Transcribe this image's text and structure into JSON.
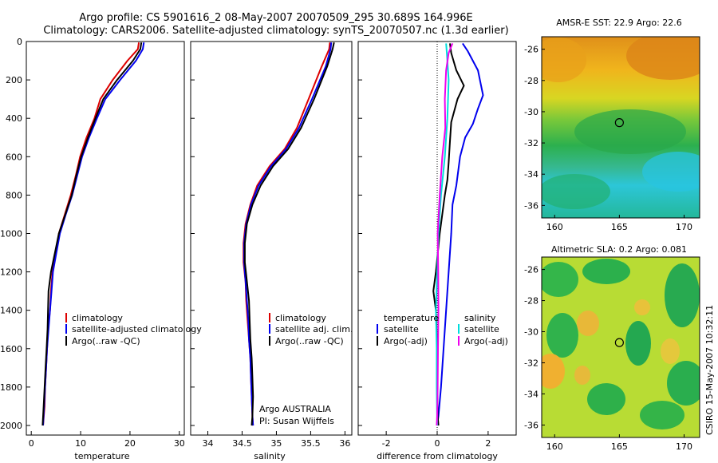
{
  "titles": {
    "line1": "Argo profile: CS 5901616_2 08-May-2007 20070509_295 30.689S 164.996E",
    "line2": "Climatology: CARS2006. Satellite-adjusted climatology: synTS_20070507.nc (1.3d earlier)"
  },
  "side_stamp": "CSIRO 15-May-2007 10:32:11",
  "credits": {
    "line1": "Argo AUSTRALIA",
    "line2": "PI: Susan Wijffels"
  },
  "colors": {
    "red": "#dd0000",
    "blue": "#0000ee",
    "black": "#000000",
    "cyan": "#00dddd",
    "magenta": "#ee00ee"
  },
  "chart_data": [
    {
      "type": "line",
      "xlabel": "temperature",
      "xlim": [
        -1,
        31
      ],
      "xticks": [
        0,
        10,
        20,
        30
      ],
      "ylim": [
        2050,
        0
      ],
      "yticks": [
        0,
        200,
        400,
        600,
        800,
        1000,
        1200,
        1400,
        1600,
        1800,
        2000
      ],
      "legend": [
        "climatology",
        "satellite-adjusted climatology",
        "Argo(..raw -QC)"
      ],
      "series": [
        {
          "name": "climatology",
          "color": "red",
          "points": [
            [
              21.8,
              5
            ],
            [
              21.6,
              40
            ],
            [
              19.5,
              100
            ],
            [
              16.5,
              200
            ],
            [
              14,
              300
            ],
            [
              12.8,
              400
            ],
            [
              11.2,
              500
            ],
            [
              9.9,
              600
            ],
            [
              9,
              700
            ],
            [
              8,
              800
            ],
            [
              6.8,
              900
            ],
            [
              5.6,
              1000
            ],
            [
              5,
              1100
            ],
            [
              4.3,
              1200
            ],
            [
              4,
              1300
            ],
            [
              3.8,
              1400
            ],
            [
              3.4,
              1500
            ],
            [
              3.2,
              1600
            ],
            [
              3,
              1700
            ],
            [
              2.8,
              1800
            ],
            [
              2.7,
              1900
            ],
            [
              2.4,
              2000
            ]
          ]
        },
        {
          "name": "satellite-adjusted climatology",
          "color": "blue",
          "points": [
            [
              22.8,
              5
            ],
            [
              22.6,
              40
            ],
            [
              21.2,
              100
            ],
            [
              18,
              200
            ],
            [
              15,
              300
            ],
            [
              13.3,
              400
            ],
            [
              11.7,
              500
            ],
            [
              10.3,
              600
            ],
            [
              9.3,
              700
            ],
            [
              8.3,
              800
            ],
            [
              7,
              900
            ],
            [
              5.8,
              1000
            ],
            [
              5.1,
              1100
            ],
            [
              4.4,
              1200
            ],
            [
              4.1,
              1300
            ],
            [
              3.8,
              1400
            ],
            [
              3.5,
              1500
            ],
            [
              3.2,
              1600
            ],
            [
              3,
              1700
            ],
            [
              2.8,
              1800
            ],
            [
              2.6,
              1900
            ],
            [
              2.4,
              2000
            ]
          ]
        },
        {
          "name": "Argo(..raw -QC)",
          "color": "black",
          "points": [
            [
              22.3,
              5
            ],
            [
              22.1,
              40
            ],
            [
              20.6,
              100
            ],
            [
              17.4,
              200
            ],
            [
              14.6,
              300
            ],
            [
              13,
              400
            ],
            [
              11.5,
              500
            ],
            [
              10.1,
              600
            ],
            [
              9.1,
              700
            ],
            [
              8.2,
              800
            ],
            [
              6.9,
              900
            ],
            [
              5.6,
              1000
            ],
            [
              4.8,
              1100
            ],
            [
              4,
              1200
            ],
            [
              3.5,
              1300
            ],
            [
              3.4,
              1400
            ],
            [
              3.3,
              1500
            ],
            [
              3.1,
              1600
            ],
            [
              2.9,
              1700
            ],
            [
              2.7,
              1800
            ],
            [
              2.5,
              1900
            ],
            [
              2.3,
              2000
            ]
          ]
        }
      ]
    },
    {
      "type": "line",
      "xlabel": "salinity",
      "xlim": [
        33.75,
        36.1
      ],
      "xticks": [
        34,
        34.5,
        35,
        35.5,
        36
      ],
      "ylim": [
        2050,
        0
      ],
      "yticks": [
        0,
        200,
        400,
        600,
        800,
        1000,
        1200,
        1400,
        1600,
        1800,
        2000
      ],
      "legend": [
        "climatology",
        "satellite adj. clim.",
        "Argo(..raw -QC)"
      ],
      "series": [
        {
          "name": "climatology",
          "color": "red",
          "points": [
            [
              35.78,
              5
            ],
            [
              35.77,
              40
            ],
            [
              35.66,
              130
            ],
            [
              35.47,
              300
            ],
            [
              35.3,
              450
            ],
            [
              35.12,
              560
            ],
            [
              34.9,
              650
            ],
            [
              34.72,
              750
            ],
            [
              34.62,
              850
            ],
            [
              34.55,
              950
            ],
            [
              34.52,
              1050
            ],
            [
              34.52,
              1150
            ],
            [
              34.55,
              1250
            ],
            [
              34.56,
              1350
            ],
            [
              34.58,
              1450
            ],
            [
              34.6,
              1550
            ],
            [
              34.62,
              1650
            ],
            [
              34.63,
              1750
            ],
            [
              34.64,
              1850
            ],
            [
              34.65,
              1950
            ],
            [
              34.66,
              2000
            ]
          ]
        },
        {
          "name": "satellite adj. clim.",
          "color": "blue",
          "points": [
            [
              35.8,
              5
            ],
            [
              35.79,
              40
            ],
            [
              35.72,
              130
            ],
            [
              35.52,
              300
            ],
            [
              35.33,
              450
            ],
            [
              35.14,
              560
            ],
            [
              34.92,
              650
            ],
            [
              34.74,
              750
            ],
            [
              34.63,
              850
            ],
            [
              34.56,
              950
            ],
            [
              34.53,
              1050
            ],
            [
              34.53,
              1150
            ],
            [
              34.55,
              1250
            ],
            [
              34.57,
              1350
            ],
            [
              34.59,
              1450
            ],
            [
              34.6,
              1550
            ],
            [
              34.62,
              1650
            ],
            [
              34.63,
              1750
            ],
            [
              34.64,
              1850
            ],
            [
              34.65,
              1950
            ],
            [
              34.66,
              2000
            ]
          ]
        },
        {
          "name": "Argo(..raw -QC)",
          "color": "black",
          "points": [
            [
              35.84,
              5
            ],
            [
              35.82,
              40
            ],
            [
              35.74,
              130
            ],
            [
              35.55,
              300
            ],
            [
              35.36,
              450
            ],
            [
              35.17,
              560
            ],
            [
              34.95,
              650
            ],
            [
              34.77,
              750
            ],
            [
              34.65,
              850
            ],
            [
              34.57,
              950
            ],
            [
              34.54,
              1050
            ],
            [
              34.54,
              1150
            ],
            [
              34.57,
              1250
            ],
            [
              34.6,
              1350
            ],
            [
              34.61,
              1450
            ],
            [
              34.62,
              1550
            ],
            [
              34.64,
              1650
            ],
            [
              34.65,
              1750
            ],
            [
              34.66,
              1850
            ],
            [
              34.65,
              1950
            ],
            [
              34.64,
              2000
            ]
          ]
        }
      ]
    },
    {
      "type": "line",
      "xlabel": "difference from climatology",
      "xlim": [
        -3.1,
        3.1
      ],
      "xticks": [
        -2,
        0,
        2
      ],
      "ylim": [
        2050,
        0
      ],
      "yticks": [
        0,
        200,
        400,
        600,
        800,
        1000,
        1200,
        1400,
        1600,
        1800,
        2000
      ],
      "legend": [
        {
          "group": "temperature",
          "items": [
            "satellite",
            "Argo(-adj)"
          ]
        },
        {
          "group": "salinity",
          "items": [
            "satellite",
            "Argo(-adj)"
          ]
        }
      ],
      "series": [
        {
          "name": "temperature satellite",
          "color": "blue",
          "points": [
            [
              1,
              10
            ],
            [
              1.2,
              50
            ],
            [
              1.6,
              150
            ],
            [
              1.8,
              280
            ],
            [
              1.6,
              350
            ],
            [
              1.4,
              430
            ],
            [
              1.1,
              500
            ],
            [
              0.9,
              600
            ],
            [
              0.75,
              750
            ],
            [
              0.6,
              850
            ],
            [
              0.55,
              1000
            ],
            [
              0.45,
              1200
            ],
            [
              0.35,
              1400
            ],
            [
              0.25,
              1600
            ],
            [
              0.15,
              1800
            ],
            [
              0.05,
              1950
            ],
            [
              0,
              2000
            ]
          ]
        },
        {
          "name": "temperature Argo(-adj)",
          "color": "black",
          "points": [
            [
              0.5,
              10
            ],
            [
              0.55,
              60
            ],
            [
              0.75,
              150
            ],
            [
              1.05,
              230
            ],
            [
              0.8,
              300
            ],
            [
              0.55,
              420
            ],
            [
              0.5,
              520
            ],
            [
              0.45,
              630
            ],
            [
              0.4,
              720
            ],
            [
              0.3,
              800
            ],
            [
              0.1,
              1000
            ],
            [
              -0.05,
              1200
            ],
            [
              -0.15,
              1300
            ],
            [
              -0.05,
              1400
            ],
            [
              0,
              1600
            ],
            [
              0,
              1800
            ],
            [
              0.02,
              1950
            ],
            [
              0.05,
              2000
            ]
          ]
        },
        {
          "name": "salinity satellite",
          "color": "cyan",
          "points": [
            [
              0.35,
              10
            ],
            [
              0.38,
              60
            ],
            [
              0.45,
              200
            ],
            [
              0.4,
              400
            ],
            [
              0.3,
              600
            ],
            [
              0.15,
              800
            ],
            [
              0.05,
              1000
            ],
            [
              0,
              1200
            ],
            [
              -0.05,
              1400
            ],
            [
              -0.02,
              1600
            ],
            [
              -0.02,
              1800
            ],
            [
              0,
              2000
            ]
          ]
        },
        {
          "name": "salinity Argo(-adj)",
          "color": "magenta",
          "points": [
            [
              0.6,
              10
            ],
            [
              0.45,
              60
            ],
            [
              0.35,
              150
            ],
            [
              0.3,
              300
            ],
            [
              0.32,
              450
            ],
            [
              0.2,
              600
            ],
            [
              0.1,
              800
            ],
            [
              0.02,
              1000
            ],
            [
              0.04,
              1200
            ],
            [
              0.05,
              1400
            ],
            [
              0.03,
              1600
            ],
            [
              0.02,
              1800
            ],
            [
              0,
              1950
            ],
            [
              -0.02,
              2000
            ]
          ]
        }
      ]
    },
    {
      "type": "heatmap",
      "title": "AMSR-E SST: 22.9 Argo: 22.6",
      "xlim": [
        159,
        171.2
      ],
      "xticks": [
        160,
        165,
        170
      ],
      "ylim": [
        -36.8,
        -25.2
      ],
      "yticks": [
        -26,
        -28,
        -30,
        -32,
        -34,
        -36
      ],
      "marker": {
        "lon": 165,
        "lat": -30.7
      }
    },
    {
      "type": "heatmap",
      "title": "Altimetric SLA: 0.2 Argo: 0.081",
      "xlim": [
        159,
        171.2
      ],
      "xticks": [
        160,
        165,
        170
      ],
      "ylim": [
        -36.8,
        -25.2
      ],
      "yticks": [
        -26,
        -28,
        -30,
        -32,
        -34,
        -36
      ],
      "marker": {
        "lon": 165,
        "lat": -30.7
      }
    }
  ]
}
